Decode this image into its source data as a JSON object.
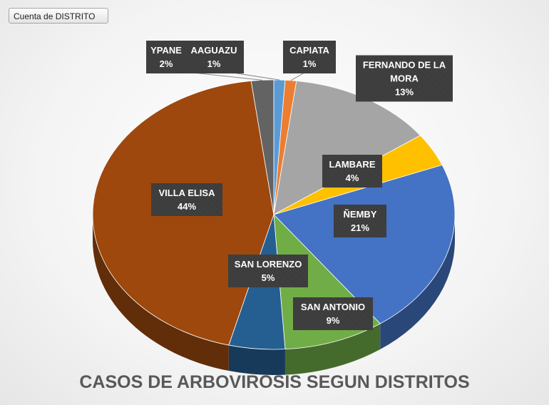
{
  "field_button": "Cuenta de DISTRITO",
  "chart_data": {
    "type": "pie3d",
    "title": "CASOS DE ARBOVIROSIS SEGUN DISTRITOS",
    "categories": [
      "AAGUAZU",
      "CAPIATA",
      "FERNANDO DE LA MORA",
      "LAMBARE",
      "ÑEMBY",
      "SAN ANTONIO",
      "SAN LORENZO",
      "VILLA ELISA",
      "YPANE"
    ],
    "values": [
      1,
      1,
      13,
      4,
      21,
      9,
      5,
      44,
      2
    ],
    "value_labels": [
      "1%",
      "1%",
      "13%",
      "4%",
      "21%",
      "9%",
      "5%",
      "44%",
      "2%"
    ],
    "colors": [
      "#5b9bd5",
      "#ed7d31",
      "#a5a5a5",
      "#ffc000",
      "#4472c4",
      "#70ad47",
      "#255e91",
      "#9e480e",
      "#636363"
    ]
  }
}
